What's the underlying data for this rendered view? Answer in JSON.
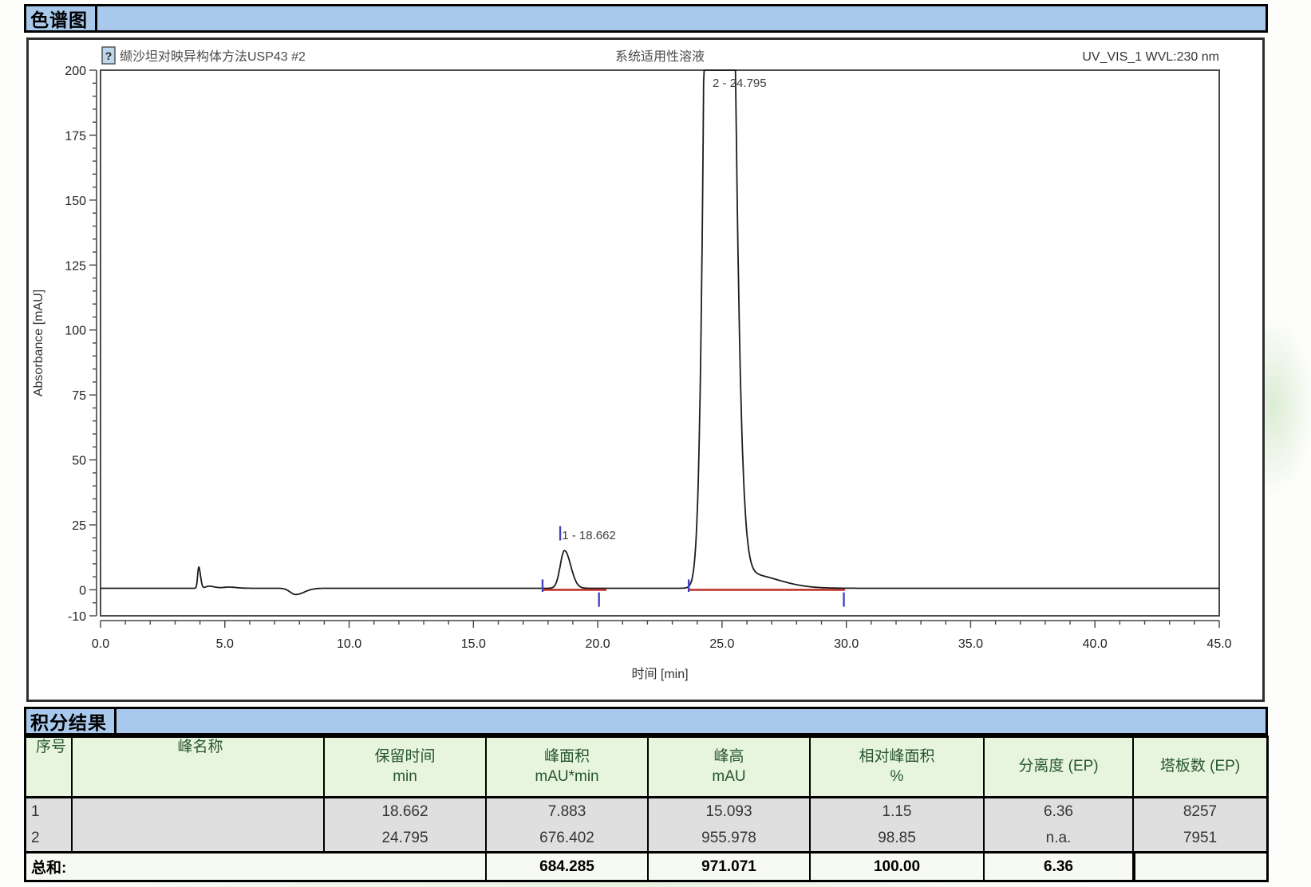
{
  "section1": {
    "title": "色谱图"
  },
  "section2": {
    "title": "积分结果"
  },
  "chart_data": {
    "type": "line",
    "header_left": "缬沙坦对映异构体方法USP43 #2",
    "header_center": "系统适用性溶液",
    "header_right": "UV_VIS_1 WVL:230 nm",
    "icon_glyph": "?",
    "xlabel": "时间 [min]",
    "ylabel": "Absorbance [mAU]",
    "xlim": [
      0,
      45
    ],
    "ylim": [
      -10,
      200
    ],
    "x_ticks": [
      "0.0",
      "5.0",
      "10.0",
      "15.0",
      "20.0",
      "25.0",
      "30.0",
      "35.0",
      "40.0",
      "45.0"
    ],
    "y_ticks": [
      "200",
      "175",
      "150",
      "125",
      "100",
      "75",
      "50",
      "25",
      "0",
      "-10"
    ],
    "x_minor_step": 1,
    "y_minor_step": 5,
    "grid": "off",
    "peaks": [
      {
        "no": 1,
        "retention_min": 18.662,
        "height_mAU": 15.093,
        "area_mAU_min": 7.883
      },
      {
        "no": 2,
        "retention_min": 24.795,
        "height_mAU": 955.978,
        "area_mAU_min": 676.402
      }
    ],
    "peak_labels": [
      {
        "text": "1 - 18.662",
        "t": 18.56,
        "v": 19.5
      },
      {
        "text": "2 - 24.795",
        "t": 24.62,
        "v": 193.5
      }
    ],
    "trace_model": {
      "baseline": 0.6,
      "components": [
        {
          "c": 3.95,
          "h": 8.2,
          "sl": 0.045,
          "sr": 0.07
        },
        {
          "c": 4.35,
          "h": 0.8,
          "sl": 0.12,
          "sr": 0.25
        },
        {
          "c": 5.15,
          "h": 0.45,
          "sl": 0.2,
          "sr": 0.3
        },
        {
          "c": 7.85,
          "h": -2.4,
          "sl": 0.22,
          "sr": 0.35
        },
        {
          "c": 18.662,
          "h": 14.5,
          "sl": 0.17,
          "sr": 0.25
        },
        {
          "c": 24.795,
          "h": 955.4,
          "sl": 0.3,
          "sr": 0.42
        },
        {
          "c": 26.0,
          "h": 5.5,
          "sl": 0.6,
          "sr": 1.2
        }
      ]
    },
    "integration": {
      "red_baseline_segments": [
        [
          17.75,
          20.35
        ],
        [
          23.65,
          29.95
        ]
      ],
      "blue_markers": [
        {
          "t": 17.78,
          "v1": -0.8,
          "v2": 4.0
        },
        {
          "t": 18.49,
          "v1": 19.0,
          "v2": 24.5
        },
        {
          "t": 20.05,
          "v1": -6.5,
          "v2": -1.0
        },
        {
          "t": 23.66,
          "v1": -0.8,
          "v2": 4.0
        },
        {
          "t": 29.9,
          "v1": -6.5,
          "v2": -1.0
        }
      ]
    },
    "colors": {
      "trace": "#1c1c1c",
      "baseline_red": "#c23329",
      "marker_blue": "#4343c0",
      "section_bar_blue": "#a9c9ec",
      "table_header_bg": "#e7f5df",
      "table_header_text": "#27562b"
    }
  },
  "table": {
    "columns": [
      {
        "label": "序号",
        "unit": ""
      },
      {
        "label": "峰名称",
        "unit": ""
      },
      {
        "label": "保留时间",
        "unit": "min"
      },
      {
        "label": "峰面积",
        "unit": "mAU*min"
      },
      {
        "label": "峰高",
        "unit": "mAU"
      },
      {
        "label": "相对峰面积",
        "unit": "%"
      },
      {
        "label": "分离度 (EP)",
        "unit": ""
      },
      {
        "label": "塔板数 (EP)",
        "unit": ""
      }
    ],
    "rows": [
      [
        "1",
        "",
        "18.662",
        "7.883",
        "15.093",
        "1.15",
        "6.36",
        "8257"
      ],
      [
        "2",
        "",
        "24.795",
        "676.402",
        "955.978",
        "98.85",
        "n.a.",
        "7951"
      ]
    ],
    "sum": {
      "label": "总和:",
      "values": [
        "684.285",
        "971.071",
        "100.00",
        "6.36",
        ""
      ]
    }
  }
}
